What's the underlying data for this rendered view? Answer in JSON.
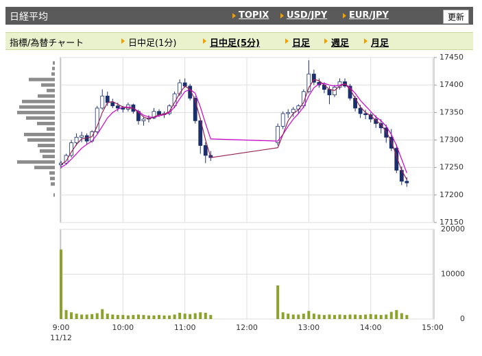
{
  "header": {
    "title": "日経平均",
    "links": [
      "TOPIX",
      "USD/JPY",
      "EUR/JPY"
    ],
    "button": "更新"
  },
  "nav": {
    "label": "指標/為替チャート",
    "items": [
      "日中足(1分)",
      "日中足(5分)",
      "日足",
      "週足",
      "月足"
    ],
    "current": 0
  },
  "chart_data": {
    "type": "candlestick",
    "date": "11/12",
    "x": [
      "9:00",
      "9:05",
      "9:10",
      "9:15",
      "9:20",
      "9:25",
      "9:30",
      "9:35",
      "9:40",
      "9:45",
      "9:50",
      "9:55",
      "10:00",
      "10:05",
      "10:10",
      "10:15",
      "10:20",
      "10:25",
      "10:30",
      "10:35",
      "10:40",
      "10:45",
      "10:50",
      "10:55",
      "11:00",
      "11:05",
      "11:10",
      "11:15",
      "11:20",
      "11:25",
      "12:30",
      "12:35",
      "12:40",
      "12:45",
      "12:50",
      "12:55",
      "13:00",
      "13:05",
      "13:10",
      "13:15",
      "13:20",
      "13:25",
      "13:30",
      "13:35",
      "13:40",
      "13:45",
      "13:50",
      "13:55",
      "14:00",
      "14:05",
      "14:10",
      "14:15",
      "14:20",
      "14:25",
      "14:30",
      "14:35"
    ],
    "candles": [
      [
        17255,
        17262,
        17248,
        17258
      ],
      [
        17258,
        17275,
        17255,
        17272
      ],
      [
        17272,
        17300,
        17268,
        17295
      ],
      [
        17295,
        17312,
        17290,
        17305
      ],
      [
        17305,
        17315,
        17296,
        17308
      ],
      [
        17308,
        17312,
        17292,
        17298
      ],
      [
        17298,
        17318,
        17295,
        17315
      ],
      [
        17315,
        17362,
        17312,
        17358
      ],
      [
        17358,
        17392,
        17355,
        17380
      ],
      [
        17380,
        17388,
        17362,
        17368
      ],
      [
        17368,
        17375,
        17358,
        17362
      ],
      [
        17362,
        17368,
        17352,
        17358
      ],
      [
        17358,
        17362,
        17350,
        17356
      ],
      [
        17356,
        17368,
        17352,
        17364
      ],
      [
        17364,
        17366,
        17348,
        17352
      ],
      [
        17352,
        17355,
        17328,
        17335
      ],
      [
        17335,
        17342,
        17326,
        17338
      ],
      [
        17338,
        17345,
        17332,
        17340
      ],
      [
        17340,
        17358,
        17338,
        17352
      ],
      [
        17352,
        17356,
        17342,
        17346
      ],
      [
        17346,
        17352,
        17340,
        17348
      ],
      [
        17348,
        17365,
        17345,
        17362
      ],
      [
        17362,
        17388,
        17358,
        17384
      ],
      [
        17384,
        17410,
        17380,
        17404
      ],
      [
        17404,
        17412,
        17395,
        17398
      ],
      [
        17398,
        17402,
        17372,
        17376
      ],
      [
        17376,
        17380,
        17330,
        17335
      ],
      [
        17335,
        17340,
        17275,
        17290
      ],
      [
        17290,
        17296,
        17258,
        17272
      ],
      [
        17272,
        17280,
        17262,
        17268
      ],
      [
        17295,
        17330,
        17290,
        17325
      ],
      [
        17325,
        17352,
        17320,
        17348
      ],
      [
        17348,
        17356,
        17340,
        17350
      ],
      [
        17350,
        17360,
        17342,
        17356
      ],
      [
        17356,
        17365,
        17348,
        17362
      ],
      [
        17362,
        17392,
        17358,
        17388
      ],
      [
        17388,
        17445,
        17385,
        17420
      ],
      [
        17420,
        17428,
        17400,
        17405
      ],
      [
        17405,
        17412,
        17395,
        17400
      ],
      [
        17400,
        17405,
        17385,
        17392
      ],
      [
        17392,
        17398,
        17365,
        17382
      ],
      [
        17382,
        17400,
        17378,
        17396
      ],
      [
        17396,
        17412,
        17392,
        17406
      ],
      [
        17406,
        17412,
        17395,
        17398
      ],
      [
        17398,
        17402,
        17372,
        17376
      ],
      [
        17376,
        17380,
        17352,
        17358
      ],
      [
        17358,
        17364,
        17340,
        17348
      ],
      [
        17348,
        17355,
        17338,
        17346
      ],
      [
        17346,
        17350,
        17332,
        17338
      ],
      [
        17338,
        17345,
        17322,
        17330
      ],
      [
        17330,
        17338,
        17312,
        17322
      ],
      [
        17322,
        17328,
        17295,
        17305
      ],
      [
        17305,
        17320,
        17280,
        17285
      ],
      [
        17285,
        17292,
        17240,
        17245
      ],
      [
        17245,
        17252,
        17218,
        17225
      ],
      [
        17225,
        17232,
        17215,
        17222
      ]
    ],
    "color": "#1a2f6e",
    "ma": [
      {
        "color": "#cc00cc",
        "values": [
          17250,
          17256,
          17265,
          17275,
          17285,
          17292,
          17298,
          17310,
          17325,
          17340,
          17350,
          17356,
          17360,
          17360,
          17358,
          17352,
          17345,
          17342,
          17341,
          17344,
          17346,
          17350,
          17360,
          17375,
          17388,
          17392,
          17385,
          17360,
          17330,
          17302,
          17298,
          17310,
          17325,
          17338,
          17348,
          17360,
          17380,
          17395,
          17402,
          17403,
          17400,
          17398,
          17400,
          17402,
          17395,
          17385,
          17372,
          17362,
          17352,
          17342,
          17335,
          17325,
          17310,
          17290,
          17265,
          17240
        ]
      },
      {
        "color": "#992255",
        "values": [
          17255,
          17262,
          17278,
          17292,
          17302,
          17304,
          17306,
          17325,
          17350,
          17368,
          17370,
          17365,
          17360,
          17358,
          17358,
          17350,
          17342,
          17338,
          17342,
          17346,
          17347,
          17352,
          17368,
          17385,
          17398,
          17392,
          17372,
          17338,
          17300,
          17268,
          17286,
          17310,
          17335,
          17348,
          17355,
          17368,
          17395,
          17410,
          17408,
          17400,
          17392,
          17390,
          17398,
          17402,
          17392,
          17376,
          17360,
          17350,
          17344,
          17336,
          17328,
          17315,
          17298,
          17270,
          17245,
          17228
        ]
      }
    ],
    "ylim": [
      17150,
      17450
    ],
    "yticks": [
      17150,
      17200,
      17250,
      17300,
      17350,
      17400,
      17450
    ],
    "xlim": [
      "9:00",
      "15:00"
    ],
    "xticks": [
      "9:00",
      "10:00",
      "11:00",
      "12:00",
      "13:00",
      "14:00",
      "15:00"
    ],
    "grid": true,
    "volume": {
      "color": "#8aa32a",
      "ylim": [
        0,
        20000
      ],
      "yticks": [
        0,
        10000,
        20000
      ],
      "values": [
        15500,
        2000,
        1500,
        1200,
        1000,
        1000,
        1100,
        1300,
        2200,
        1200,
        1000,
        900,
        900,
        800,
        900,
        1000,
        900,
        800,
        800,
        900,
        800,
        800,
        1000,
        1400,
        1200,
        1100,
        1300,
        1500,
        1400,
        900,
        7500,
        1500,
        1200,
        1000,
        1000,
        1200,
        1800,
        1200,
        1000,
        900,
        1000,
        900,
        1000,
        900,
        1000,
        1000,
        900,
        1000,
        1100,
        1000,
        900,
        1000,
        1600,
        2000,
        1300,
        900
      ]
    },
    "profile": {
      "color": "#8c8c8c",
      "xlim": [
        0,
        62
      ],
      "prices": [
        17440,
        17430,
        17420,
        17410,
        17400,
        17390,
        17380,
        17370,
        17360,
        17350,
        17340,
        17330,
        17320,
        17310,
        17300,
        17290,
        17280,
        17270,
        17260,
        17250,
        17240,
        17230,
        17220,
        17200
      ],
      "values": [
        3,
        4,
        5,
        38,
        20,
        12,
        25,
        48,
        52,
        55,
        42,
        26,
        12,
        45,
        40,
        25,
        22,
        18,
        55,
        30,
        8,
        7,
        6,
        2
      ]
    }
  }
}
